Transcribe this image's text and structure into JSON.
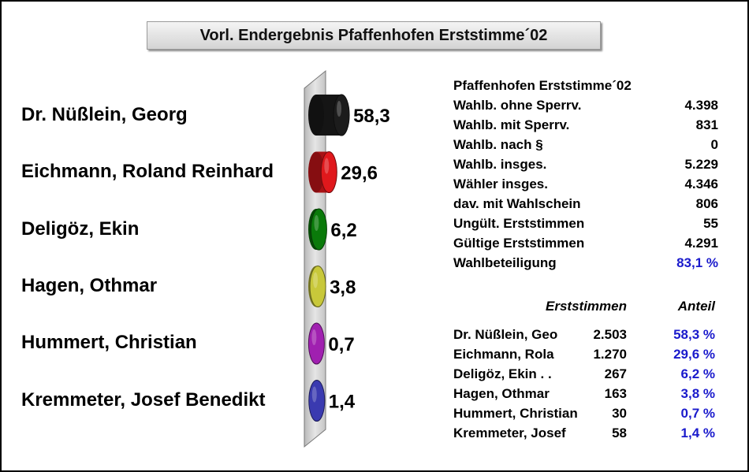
{
  "title": "Vorl. Endergebnis Pfaffenhofen Erststimme´02",
  "chart_data": {
    "type": "bar",
    "categories": [
      "Dr. Nüßlein, Georg",
      "Eichmann, Roland Reinhard",
      "Deligöz, Ekin",
      "Hagen, Othmar",
      "Hummert, Christian",
      "Kremmeter, Josef Benedikt"
    ],
    "values": [
      58.3,
      29.6,
      6.2,
      3.8,
      0.7,
      1.4
    ],
    "value_labels": [
      "58,3",
      "29,6",
      "6,2",
      "3,8",
      "0,7",
      "1,4"
    ],
    "colors": [
      "#1c1c1c",
      "#e0181c",
      "#0a7a0a",
      "#c8c83a",
      "#a020b0",
      "#3a3ab0"
    ],
    "grid": false,
    "legend": "none"
  },
  "stats": {
    "heading": "Pfaffenhofen Erststimme´02",
    "rows": [
      {
        "label": "Wahlb. ohne Sperrv.",
        "value": "4.398"
      },
      {
        "label": "Wahlb. mit Sperrv.",
        "value": "831"
      },
      {
        "label": "Wahlb. nach §",
        "value": "0"
      },
      {
        "label": "Wahlb. insges.",
        "value": "5.229"
      },
      {
        "label": "Wähler insges.",
        "value": "4.346"
      },
      {
        "label": "dav. mit Wahlschein",
        "value": "806"
      },
      {
        "label": "Ungült. Erststimmen",
        "value": "55"
      },
      {
        "label": "Gültige Erststimmen",
        "value": "4.291"
      },
      {
        "label": "Wahlbeteiligung",
        "value": "83,1 %"
      }
    ]
  },
  "results": {
    "col_votes": "Erststimmen",
    "col_share": "Anteil",
    "rows": [
      {
        "name": "Dr. Nüßlein, Geo",
        "votes": "2.503",
        "share": "58,3 %"
      },
      {
        "name": "Eichmann, Rola",
        "votes": "1.270",
        "share": "29,6 %"
      },
      {
        "name": "Deligöz, Ekin . .",
        "votes": "267",
        "share": "6,2 %"
      },
      {
        "name": "Hagen, Othmar",
        "votes": "163",
        "share": "3,8 %"
      },
      {
        "name": "Hummert, Christian",
        "votes": "30",
        "share": "0,7 %"
      },
      {
        "name": "Kremmeter, Josef",
        "votes": "58",
        "share": "1,4 %"
      }
    ]
  }
}
